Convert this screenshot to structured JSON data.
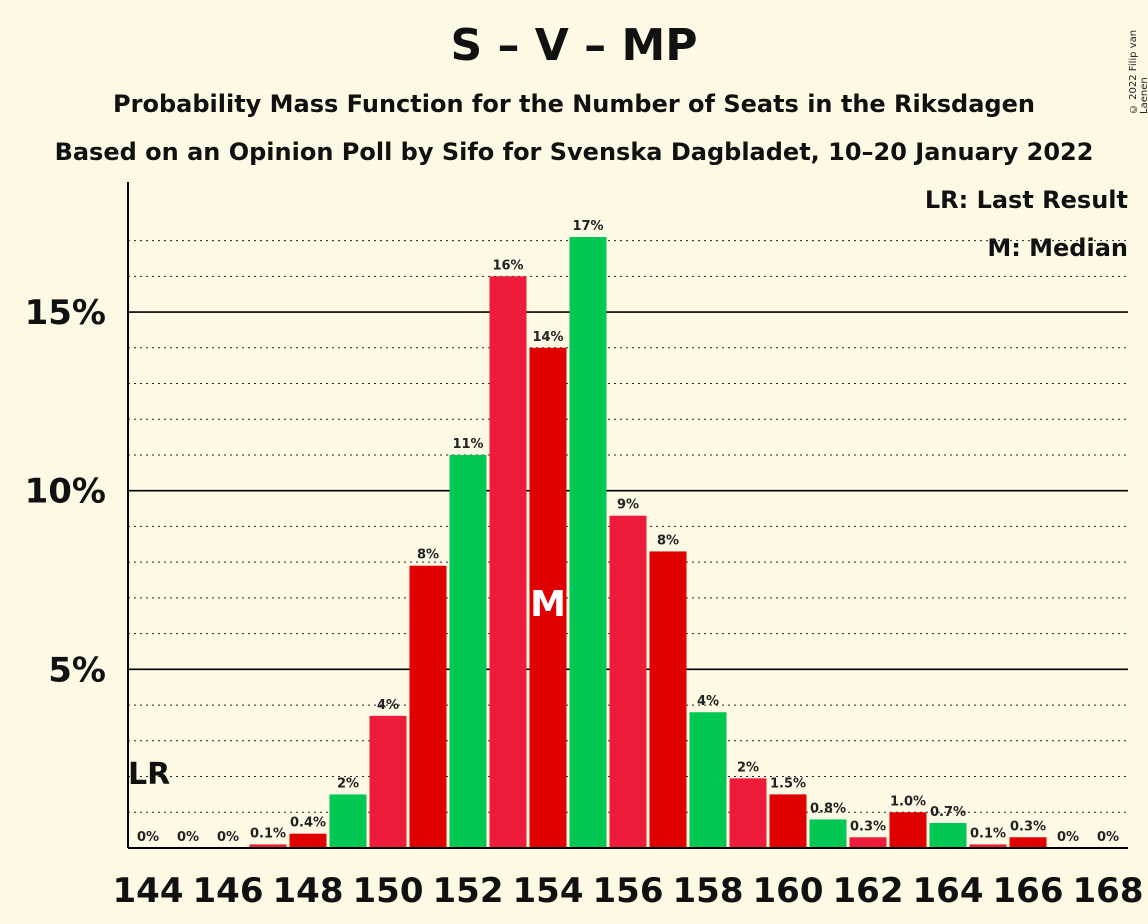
{
  "header": {
    "title": "S – V – MP",
    "subtitle1": "Probability Mass Function for the Number of Seats in the Riksdagen",
    "subtitle2": "Based on an Opinion Poll by Sifo for Svenska Dagbladet, 10–20 January 2022",
    "copyright": "© 2022 Filip van Laenen"
  },
  "legend": {
    "last_result": "LR: Last Result",
    "median": "M: Median"
  },
  "markers": {
    "last_result_label": "LR",
    "last_result_seat": 144,
    "median_label": "M",
    "median_seat": 154
  },
  "colors": {
    "green": "#00c853",
    "red": "#ee1c3a",
    "darkred": "#e00000",
    "background": "#fef9e4"
  },
  "chart_data": {
    "type": "bar",
    "categories": [
      144,
      145,
      146,
      147,
      148,
      149,
      150,
      151,
      152,
      153,
      154,
      155,
      156,
      157,
      158,
      159,
      160,
      161,
      162,
      163,
      164,
      165,
      166,
      167,
      168
    ],
    "values": [
      0,
      0,
      0,
      0.1,
      0.4,
      1.5,
      3.7,
      7.9,
      11.0,
      16.0,
      14.0,
      17.1,
      9.3,
      8.3,
      3.8,
      1.95,
      1.5,
      0.8,
      0.3,
      1.0,
      0.7,
      0.1,
      0.3,
      0,
      0
    ],
    "data_labels": [
      "0%",
      "0%",
      "0%",
      "0.1%",
      "0.4%",
      "2%",
      "4%",
      "8%",
      "11%",
      "16%",
      "14%",
      "17%",
      "9%",
      "8%",
      "4%",
      "2%",
      "1.5%",
      "0.8%",
      "0.3%",
      "1.0%",
      "0.7%",
      "0.1%",
      "0.3%",
      "0%",
      "0%"
    ],
    "bar_colors": [
      "green",
      "red",
      "darkred",
      "red",
      "darkred",
      "green",
      "red",
      "darkred",
      "green",
      "red",
      "darkred",
      "green",
      "red",
      "darkred",
      "green",
      "red",
      "darkred",
      "green",
      "red",
      "darkred",
      "green",
      "red",
      "darkred",
      "green",
      "red"
    ],
    "x_tick_labels": [
      "144",
      "146",
      "148",
      "150",
      "152",
      "154",
      "156",
      "158",
      "160",
      "162",
      "164",
      "166",
      "168"
    ],
    "y_tick_labels": [
      "5%",
      "10%",
      "15%"
    ],
    "y_ticks": [
      5,
      10,
      15
    ],
    "ylim": [
      0,
      18.6
    ],
    "xlabel": "",
    "ylabel": "",
    "grid": true
  }
}
